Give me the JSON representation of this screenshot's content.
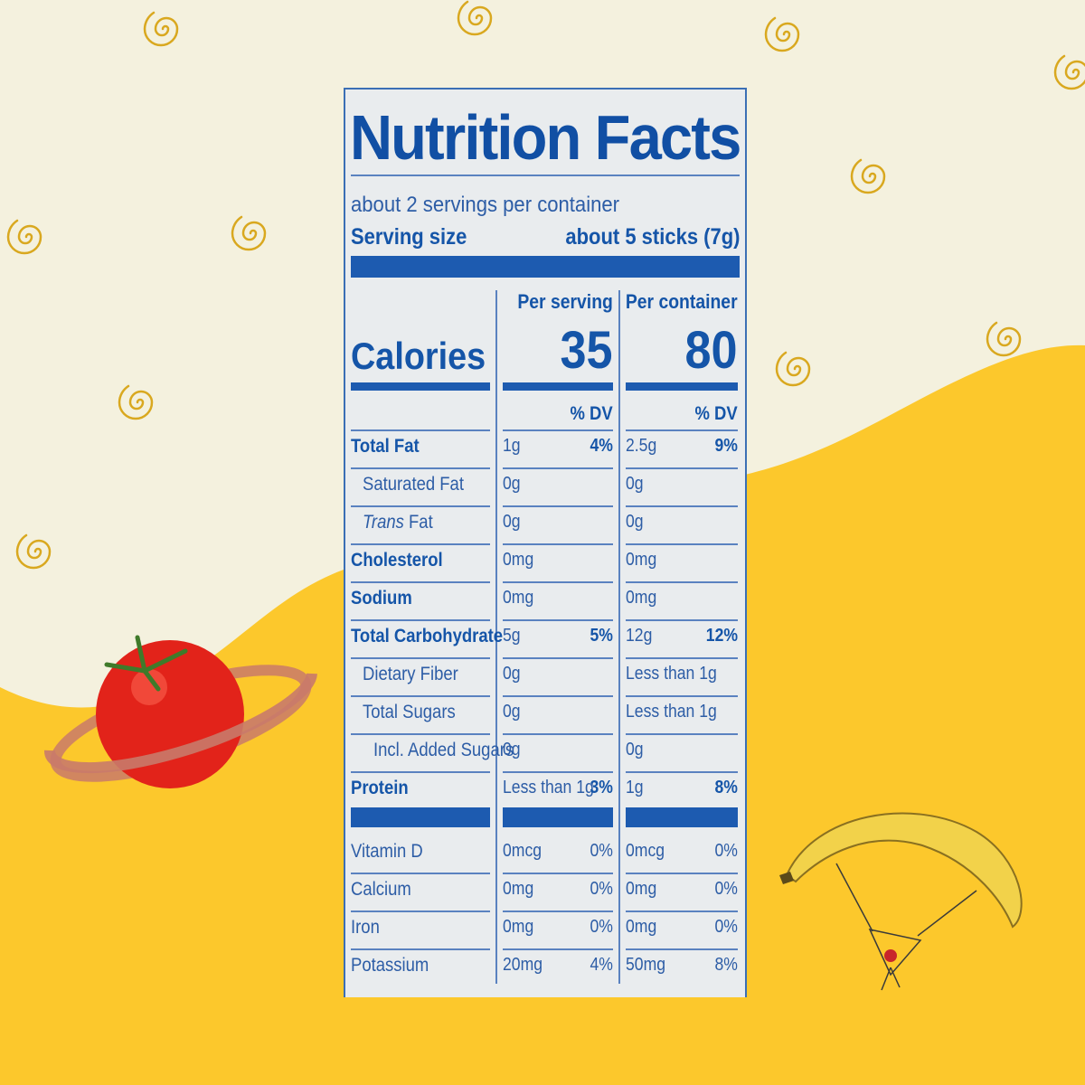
{
  "label": {
    "title": "Nutrition Facts",
    "servings_per_container": "about 2 servings per container",
    "serving_size_label": "Serving size",
    "serving_size_value": "about 5 sticks (7g)",
    "col_per_serving": "Per serving",
    "col_per_container": "Per container",
    "calories_label": "Calories",
    "calories_serving": "35",
    "calories_container": "80",
    "dv_header": "% DV",
    "rows": [
      {
        "label": "Total Fat",
        "indent": 0,
        "bold": true,
        "serving": "1g",
        "serving_dv": "4%",
        "container": "2.5g",
        "container_dv": "9%"
      },
      {
        "label": "Saturated Fat",
        "indent": 1,
        "bold": false,
        "serving": "0g",
        "serving_dv": "",
        "container": "0g",
        "container_dv": ""
      },
      {
        "label": "Trans Fat",
        "indent": 1,
        "bold": false,
        "italic_prefix": "Trans",
        "serving": "0g",
        "serving_dv": "",
        "container": "0g",
        "container_dv": ""
      },
      {
        "label": "Cholesterol",
        "indent": 0,
        "bold": true,
        "serving": "0mg",
        "serving_dv": "",
        "container": "0mg",
        "container_dv": ""
      },
      {
        "label": "Sodium",
        "indent": 0,
        "bold": true,
        "serving": "0mg",
        "serving_dv": "",
        "container": "0mg",
        "container_dv": ""
      },
      {
        "label": "Total Carbohydrate",
        "indent": 0,
        "bold": true,
        "serving": "5g",
        "serving_dv": "5%",
        "container": "12g",
        "container_dv": "12%"
      },
      {
        "label": "Dietary Fiber",
        "indent": 1,
        "bold": false,
        "serving": "0g",
        "serving_dv": "",
        "container": "Less than 1g",
        "container_dv": ""
      },
      {
        "label": "Total Sugars",
        "indent": 1,
        "bold": false,
        "serving": "0g",
        "serving_dv": "",
        "container": "Less than 1g",
        "container_dv": ""
      },
      {
        "label": "Incl. Added Sugars",
        "indent": 2,
        "bold": false,
        "serving": "0g",
        "serving_dv": "",
        "container": "0g",
        "container_dv": ""
      },
      {
        "label": "Protein",
        "indent": 0,
        "bold": true,
        "serving": "Less than 1g",
        "serving_dv": "3%",
        "container": "1g",
        "container_dv": "8%"
      }
    ],
    "vitamins": [
      {
        "label": "Vitamin D",
        "serving": "0mcg",
        "serving_dv": "0%",
        "container": "0mcg",
        "container_dv": "0%"
      },
      {
        "label": "Calcium",
        "serving": "0mg",
        "serving_dv": "0%",
        "container": "0mg",
        "container_dv": "0%"
      },
      {
        "label": "Iron",
        "serving": "0mg",
        "serving_dv": "0%",
        "container": "0mg",
        "container_dv": "0%"
      },
      {
        "label": "Potassium",
        "serving": "20mg",
        "serving_dv": "4%",
        "container": "50mg",
        "container_dv": "8%"
      }
    ]
  },
  "colors": {
    "background_cream": "#f4f1de",
    "background_yellow": "#fcc82c",
    "label_blue": "#1555a8",
    "swirl_gold": "#d9a81f",
    "tomato_red": "#e2231a",
    "banana_yellow": "#f2d24a"
  },
  "decorations": [
    "swirl-icon",
    "tomato-planet",
    "banana-parachute"
  ]
}
